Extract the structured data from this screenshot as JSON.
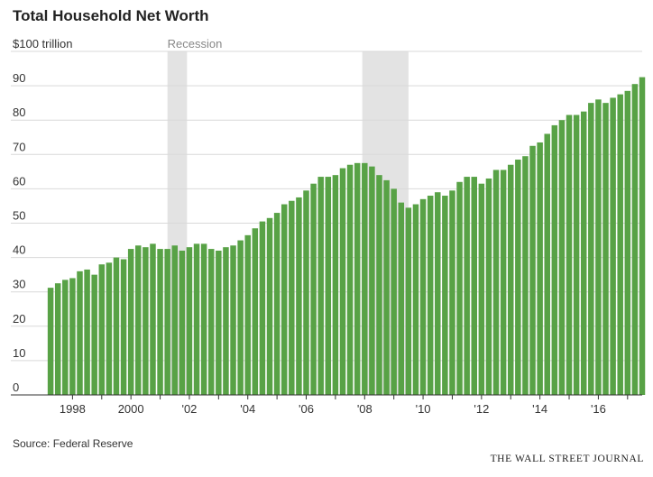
{
  "chart_data": {
    "type": "bar",
    "title": "Total Household Net Worth",
    "ylabel": "$100 trillion",
    "ylim": [
      0,
      100
    ],
    "yticks": [
      0,
      10,
      20,
      30,
      40,
      50,
      60,
      70,
      80,
      90
    ],
    "top_tick_label": "$100 trillion",
    "x_start": 1997.25,
    "x_step": 0.25,
    "xlim": [
      1997.0,
      2017.5
    ],
    "xticks": [
      {
        "year": 1998,
        "label": "1998"
      },
      {
        "year": 2000,
        "label": "2000"
      },
      {
        "year": 2002,
        "label": "'02"
      },
      {
        "year": 2004,
        "label": "'04"
      },
      {
        "year": 2006,
        "label": "'06"
      },
      {
        "year": 2008,
        "label": "'08"
      },
      {
        "year": 2010,
        "label": "'10"
      },
      {
        "year": 2012,
        "label": "'12"
      },
      {
        "year": 2014,
        "label": "'14"
      },
      {
        "year": 2016,
        "label": "'16"
      }
    ],
    "recessions": [
      {
        "start": 2001.25,
        "end": 2001.92
      },
      {
        "start": 2007.92,
        "end": 2009.5
      }
    ],
    "recession_label": "Recession",
    "values": [
      31.2,
      32.5,
      33.5,
      34.0,
      36.0,
      36.5,
      35.0,
      38.0,
      38.5,
      40.0,
      39.5,
      42.5,
      43.5,
      43.0,
      44.0,
      42.5,
      42.5,
      43.5,
      42.0,
      43.0,
      44.0,
      44.0,
      42.5,
      42.0,
      43.0,
      43.5,
      45.0,
      46.5,
      48.5,
      50.5,
      51.5,
      53.0,
      55.5,
      56.5,
      57.5,
      59.5,
      61.5,
      63.5,
      63.5,
      64.0,
      66.0,
      67.0,
      67.5,
      67.5,
      66.5,
      64.0,
      62.5,
      60.0,
      56.0,
      54.5,
      55.5,
      57.0,
      58.0,
      59.0,
      58.0,
      59.5,
      62.0,
      63.5,
      63.5,
      61.5,
      63.0,
      65.5,
      65.5,
      67.0,
      68.5,
      69.5,
      72.5,
      73.5,
      76.0,
      78.5,
      80.0,
      81.5,
      81.5,
      82.5,
      85.0,
      86.0,
      85.0,
      86.5,
      87.5,
      88.5,
      90.5,
      92.5
    ],
    "bar_color": "#58a246",
    "recession_color": "#e3e3e3"
  },
  "source": "Source: Federal Reserve",
  "brand": "THE WALL STREET JOURNAL"
}
